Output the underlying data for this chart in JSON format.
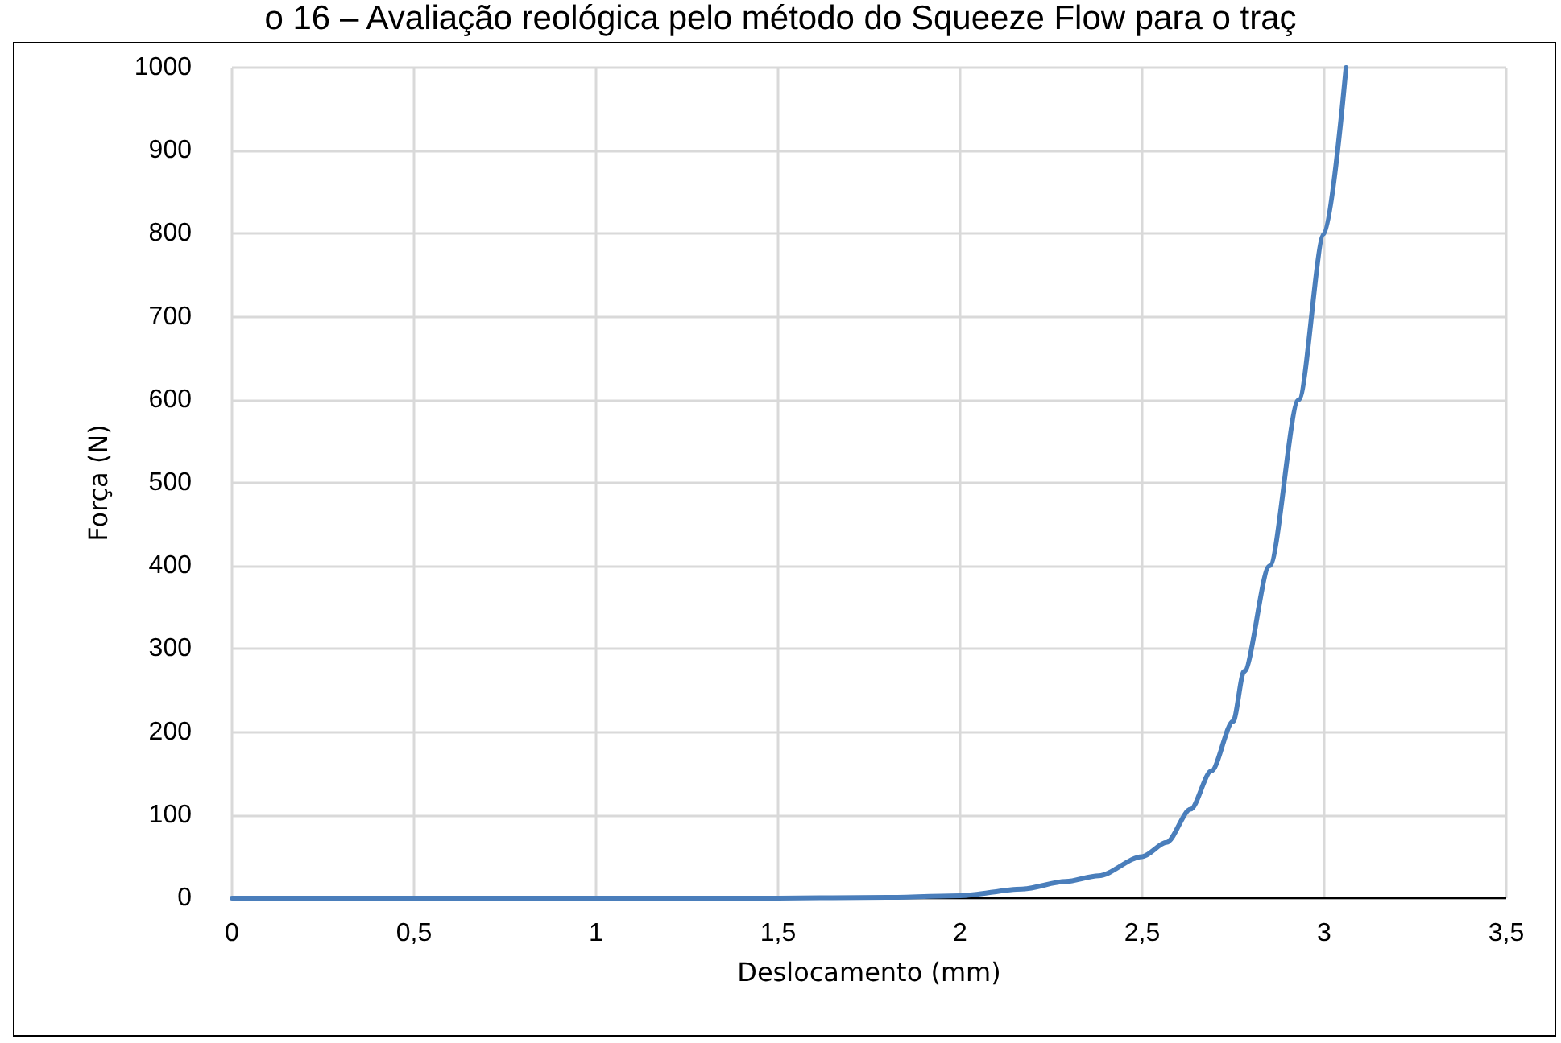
{
  "chart_data": {
    "type": "line",
    "title": "o 16 – Avaliação reológica pelo método do Squeeze Flow para o traç",
    "xlabel": "Deslocamento (mm)",
    "ylabel": "Força (N)",
    "x": [
      0,
      0.5,
      1,
      1.5,
      1.8,
      2,
      2.17,
      2.29,
      2.38,
      2.5,
      2.567,
      2.633,
      2.69,
      2.75,
      2.78,
      2.85,
      2.93,
      3,
      3.06
    ],
    "series": [
      {
        "color": "#4a7ebb",
        "values": [
          0,
          0,
          0,
          0,
          1,
          3,
          11,
          20,
          27,
          50,
          67,
          107,
          153,
          213,
          273,
          400,
          600,
          800,
          1000
        ]
      }
    ],
    "xlim": [
      0,
      3.5
    ],
    "xticks": [
      0,
      {
        "value": 0.5,
        "label": "0,5"
      },
      1,
      {
        "value": 1.5,
        "label": "1,5"
      },
      2,
      {
        "value": 2.5,
        "label": "2,5"
      },
      3,
      {
        "value": 3.5,
        "label": "3,5"
      }
    ],
    "ylim": [
      0,
      1000
    ],
    "yticks": [
      0,
      100,
      200,
      300,
      400,
      500,
      600,
      700,
      800,
      900,
      1000
    ],
    "grid": true,
    "marker": "none",
    "line_style": "solid"
  }
}
